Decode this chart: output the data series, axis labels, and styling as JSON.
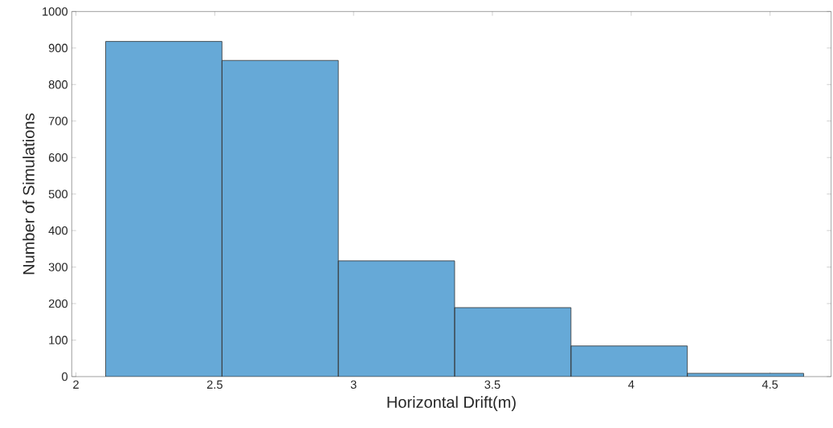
{
  "chart_data": {
    "type": "histogram",
    "xlabel": "Horizontal Drift(m)",
    "ylabel": "Number of Simulations",
    "bins": [
      2.107,
      2.526,
      2.945,
      3.364,
      3.783,
      4.202,
      4.621
    ],
    "values": [
      918,
      866,
      317,
      189,
      84,
      9
    ],
    "color": "#66a9d7",
    "xlim": [
      1.985,
      4.72
    ],
    "ylim": [
      0,
      1000
    ],
    "xticks": [
      2,
      2.5,
      3,
      3.5,
      4,
      4.5
    ],
    "yticks": [
      0,
      100,
      200,
      300,
      400,
      500,
      600,
      700,
      800,
      900,
      1000
    ],
    "grid": false
  }
}
